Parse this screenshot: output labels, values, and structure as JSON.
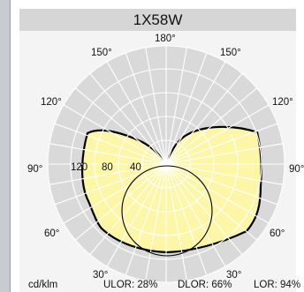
{
  "title": "1X58W",
  "angle_labels": {
    "top": "180°",
    "upper_left": "150°",
    "upper_right": "150°",
    "mid_left": "120°",
    "mid_right": "120°",
    "horizontal_left": "90°",
    "horizontal_right": "90°",
    "lower_left": "60°",
    "lower_right": "60°",
    "bottom_left": "30°",
    "bottom_right": "30°"
  },
  "scale_labels": [
    "120",
    "80",
    "40"
  ],
  "unit_label": "cd/klm",
  "ulor": "ULOR: 28%",
  "dlor": "DLOR: 66%",
  "lor": "LOR: 94%",
  "colors": {
    "fill": "#fdf6a6",
    "outline": "#000000",
    "grid": "#ffffff",
    "title_bar": "#d6d6d6",
    "panel": "#f4f4f4"
  }
}
